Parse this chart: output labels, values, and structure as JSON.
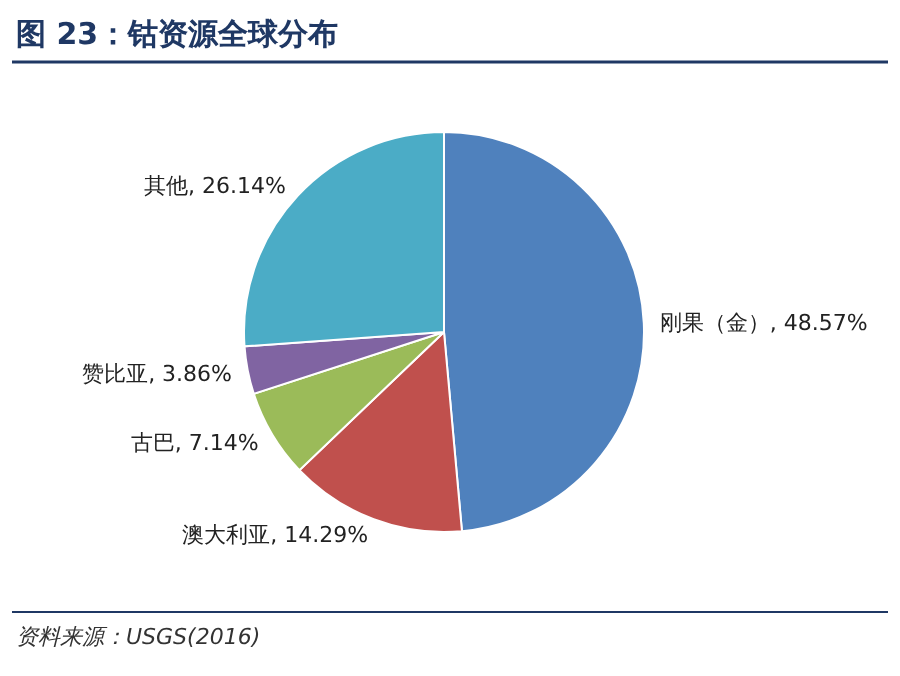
{
  "chart_data": {
    "type": "pie",
    "title": "图 23：钴资源全球分布",
    "categories": [
      "刚果（金）",
      "澳大利亚",
      "古巴",
      "赞比亚",
      "其他"
    ],
    "values": [
      48.57,
      14.29,
      7.14,
      3.86,
      26.14
    ],
    "value_labels": [
      "48.57%",
      "14.29%",
      "7.14%",
      "3.86%",
      "26.14%"
    ],
    "colors": [
      "#4f81bd",
      "#c0504d",
      "#9bbb59",
      "#8064a2",
      "#4bacc6"
    ],
    "annotations": [
      "资料来源：USGS(2016)"
    ]
  }
}
